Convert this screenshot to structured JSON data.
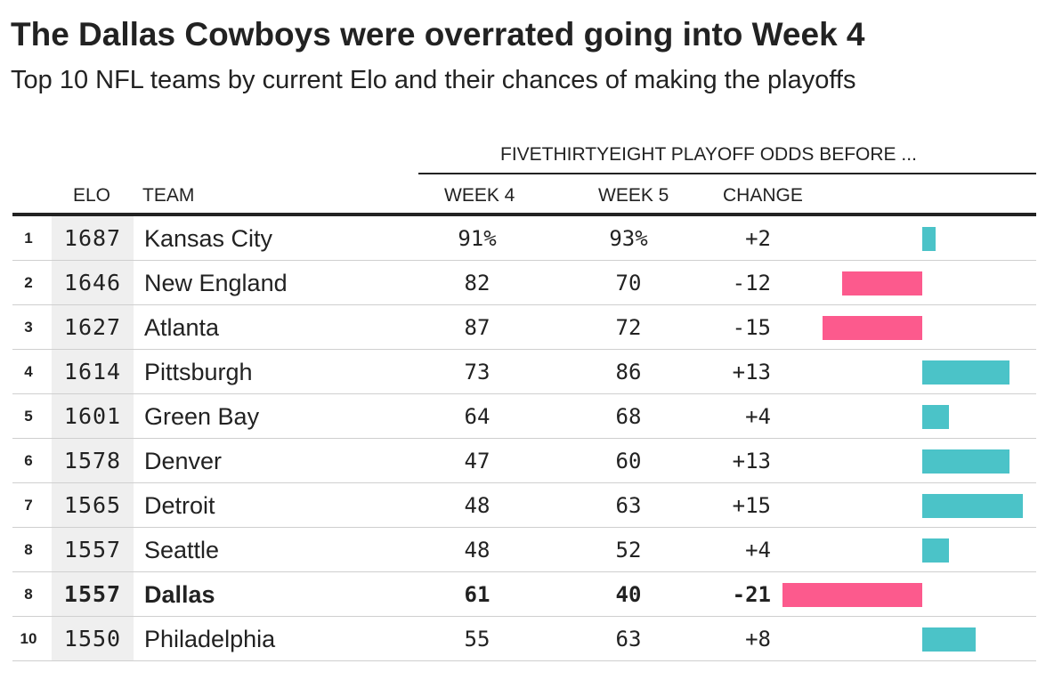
{
  "chart_data": {
    "type": "table",
    "title": "The Dallas Cowboys were overrated going into Week 4",
    "subtitle": "Top 10 NFL teams by current Elo and their chances of making the playoffs",
    "group_header": "FIVETHIRTYEIGHT PLAYOFF ODDS BEFORE ...",
    "columns": {
      "elo": "ELO",
      "team": "TEAM",
      "week4": "WEEK 4",
      "week5": "WEEK 5",
      "change": "CHANGE"
    },
    "rows": [
      {
        "rank": "1",
        "elo": "1687",
        "team": "Kansas City",
        "week4": "91%",
        "week5": "93%",
        "change": "+2",
        "change_value": 2,
        "highlight": false
      },
      {
        "rank": "2",
        "elo": "1646",
        "team": "New England",
        "week4": "82",
        "week5": "70",
        "change": "-12",
        "change_value": -12,
        "highlight": false
      },
      {
        "rank": "3",
        "elo": "1627",
        "team": "Atlanta",
        "week4": "87",
        "week5": "72",
        "change": "-15",
        "change_value": -15,
        "highlight": false
      },
      {
        "rank": "4",
        "elo": "1614",
        "team": "Pittsburgh",
        "week4": "73",
        "week5": "86",
        "change": "+13",
        "change_value": 13,
        "highlight": false
      },
      {
        "rank": "5",
        "elo": "1601",
        "team": "Green Bay",
        "week4": "64",
        "week5": "68",
        "change": "+4",
        "change_value": 4,
        "highlight": false
      },
      {
        "rank": "6",
        "elo": "1578",
        "team": "Denver",
        "week4": "47",
        "week5": "60",
        "change": "+13",
        "change_value": 13,
        "highlight": false
      },
      {
        "rank": "7",
        "elo": "1565",
        "team": "Detroit",
        "week4": "48",
        "week5": "63",
        "change": "+15",
        "change_value": 15,
        "highlight": false
      },
      {
        "rank": "8",
        "elo": "1557",
        "team": "Seattle",
        "week4": "48",
        "week5": "52",
        "change": "+4",
        "change_value": 4,
        "highlight": false
      },
      {
        "rank": "8",
        "elo": "1557",
        "team": "Dallas",
        "week4": "61",
        "week5": "40",
        "change": "-21",
        "change_value": -21,
        "highlight": true
      },
      {
        "rank": "10",
        "elo": "1550",
        "team": "Philadelphia",
        "week4": "55",
        "week5": "63",
        "change": "+8",
        "change_value": 8,
        "highlight": false
      }
    ],
    "colors": {
      "positive": "#4bc3c8",
      "negative": "#fc5a8d",
      "elo_band": "#efefef",
      "rule": "#cfcfcf"
    }
  }
}
